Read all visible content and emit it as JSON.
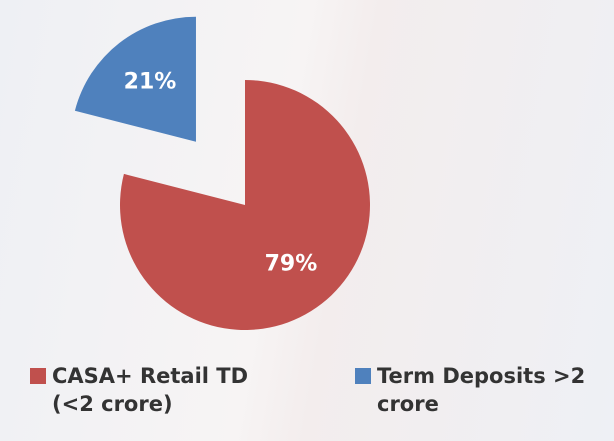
{
  "chart_data": {
    "type": "pie",
    "series": [
      {
        "name": "CASA+ Retail TD (<2 crore)",
        "color": "#c0504d",
        "values": [
          79
        ],
        "value_labels": [
          "79%"
        ]
      },
      {
        "name": "Term Deposits >2 crore",
        "color": "#4f81bd",
        "values": [
          21
        ],
        "value_labels": [
          "21%"
        ]
      }
    ]
  }
}
